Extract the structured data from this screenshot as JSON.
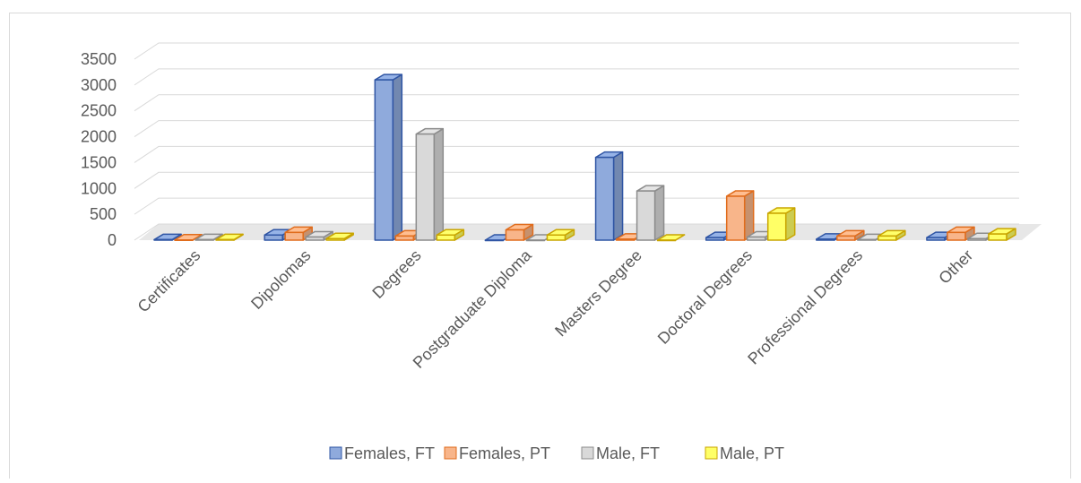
{
  "chart_data": {
    "type": "bar3d",
    "categories": [
      "Certificates",
      "Dipolomas",
      "Degrees",
      "Postgraduate Diploma",
      "Masters Degree",
      "Doctoral Degrees",
      "Professional Degrees",
      "Other"
    ],
    "series": [
      {
        "name": "Females, FT",
        "color": "#8faadc",
        "values": [
          10,
          100,
          3100,
          0,
          1600,
          50,
          20,
          50
        ]
      },
      {
        "name": "Females, PT",
        "color": "#f8b58a",
        "values": [
          5,
          150,
          80,
          200,
          20,
          850,
          80,
          150
        ]
      },
      {
        "name": "Male, FT",
        "color": "#d9d9d9",
        "values": [
          10,
          60,
          2050,
          0,
          950,
          60,
          10,
          30
        ]
      },
      {
        "name": "Male, PT",
        "color": "#ffff66",
        "values": [
          10,
          30,
          100,
          100,
          0,
          520,
          80,
          120
        ]
      }
    ],
    "ylim": [
      0,
      3500
    ],
    "yticks": [
      0,
      500,
      1000,
      1500,
      2000,
      2500,
      3000,
      3500
    ],
    "grid": true,
    "legend": "bottom"
  }
}
